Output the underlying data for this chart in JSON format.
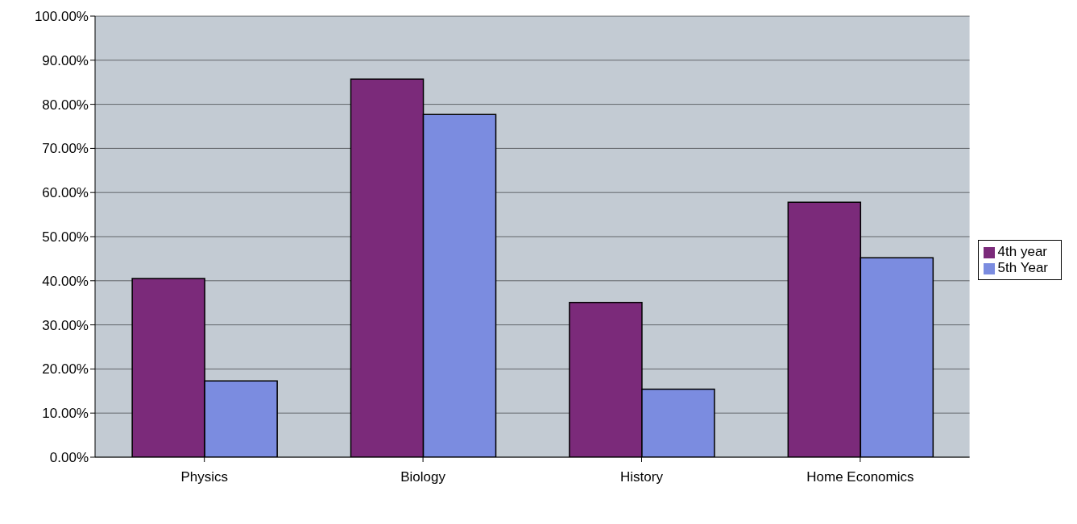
{
  "chart_data": {
    "type": "bar",
    "categories": [
      "Physics",
      "Biology",
      "History",
      "Home Economics"
    ],
    "series": [
      {
        "name": "4th year",
        "color": "#7b2a7a",
        "values": [
          40.5,
          85.7,
          35.1,
          57.8
        ]
      },
      {
        "name": "5th Year",
        "color": "#7b8ce0",
        "values": [
          17.3,
          77.7,
          15.4,
          45.2
        ]
      }
    ],
    "ylim": [
      0,
      100
    ],
    "yticks": [
      {
        "value": 0,
        "label": "0.00%"
      },
      {
        "value": 10,
        "label": "10.00%"
      },
      {
        "value": 20,
        "label": "20.00%"
      },
      {
        "value": 30,
        "label": "30.00%"
      },
      {
        "value": 40,
        "label": "40.00%"
      },
      {
        "value": 50,
        "label": "50.00%"
      },
      {
        "value": 60,
        "label": "60.00%"
      },
      {
        "value": 70,
        "label": "70.00%"
      },
      {
        "value": 80,
        "label": "80.00%"
      },
      {
        "value": 90,
        "label": "90.00%"
      },
      {
        "value": 100,
        "label": "100.00%"
      }
    ],
    "grid": "y",
    "legend": "right"
  }
}
